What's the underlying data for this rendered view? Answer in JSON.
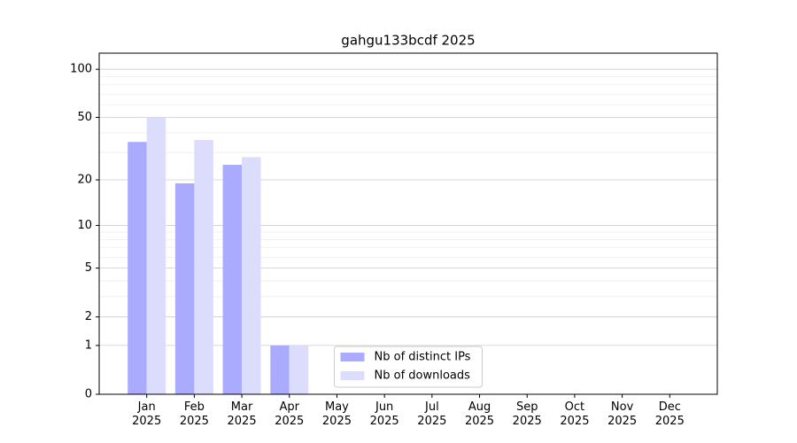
{
  "chart_data": {
    "type": "bar",
    "title": "gahgu133bcdf 2025",
    "categories": [
      "Jan\n2025",
      "Feb\n2025",
      "Mar\n2025",
      "Apr\n2025",
      "May\n2025",
      "Jun\n2025",
      "Jul\n2025",
      "Aug\n2025",
      "Sep\n2025",
      "Oct\n2025",
      "Nov\n2025",
      "Dec\n2025"
    ],
    "series": [
      {
        "name": "Nb of distinct IPs",
        "color": "#aaaaff",
        "values": [
          35,
          19,
          25,
          1,
          0,
          0,
          0,
          0,
          0,
          0,
          0,
          0
        ]
      },
      {
        "name": "Nb of downloads",
        "color": "#dcdcfd",
        "values": [
          50,
          36,
          28,
          1,
          0,
          0,
          0,
          0,
          0,
          0,
          0,
          0
        ]
      }
    ],
    "yscale": "log1p",
    "ylim": [
      0,
      126
    ],
    "yticks": [
      0,
      1,
      2,
      5,
      10,
      20,
      50,
      100
    ],
    "yminorticks": [
      3,
      4,
      6,
      7,
      8,
      9,
      30,
      40,
      60,
      70,
      80,
      90
    ],
    "grid": true,
    "legend": "lower center"
  }
}
